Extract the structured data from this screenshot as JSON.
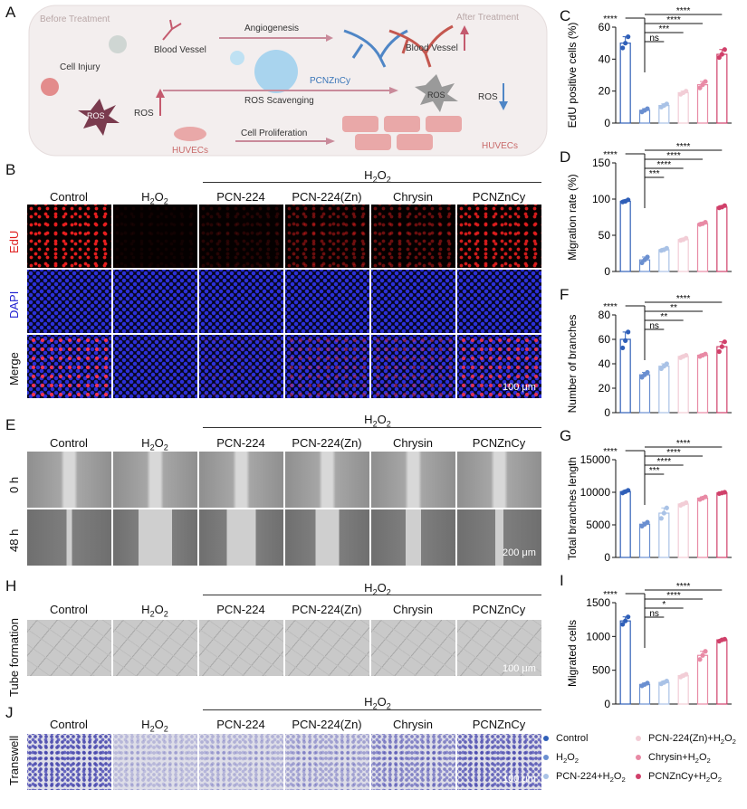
{
  "panels": {
    "A": "A",
    "B": "B",
    "C": "C",
    "D": "D",
    "E": "E",
    "F": "F",
    "G": "G",
    "H": "H",
    "I": "I",
    "J": "J"
  },
  "schematic": {
    "before": "Before Treatment",
    "after": "After Treatment",
    "blood_vessel": "Blood Vessel",
    "angiogenesis": "Angiogenesis",
    "blood_vessel_after": "Blood Vessel",
    "cell_injury": "Cell Injury",
    "pcnzncy": "PCNZnCy",
    "ros_left": "ROS",
    "ros_mid": "ROS",
    "ros_scavenging": "ROS Scavenging",
    "ros_right_inner": "ROS",
    "ros_right": "ROS",
    "huvecs_left": "HUVECs",
    "cell_prolif": "Cell Proliferation",
    "huvecs_right": "HUVECs"
  },
  "groups": {
    "h2o2": "H2O2",
    "control": "Control",
    "h2o2_col": "H2O2",
    "pcn224": "PCN-224",
    "pcn224zn": "PCN-224(Zn)",
    "chrysin": "Chrysin",
    "pcnzncy": "PCNZnCy"
  },
  "rows": {
    "edu": "EdU",
    "dapi": "DAPI",
    "merge": "Merge",
    "zero_h": "0 h",
    "fortyeight_h": "48 h",
    "tube": "Tube formation",
    "transwell": "Transwell"
  },
  "scalebars": {
    "b": "100 μm",
    "e": "200 μm",
    "h": "100 μm",
    "j": "100 μm"
  },
  "colors": {
    "edu_label": "#e02020",
    "dapi_label": "#2020d0",
    "s1": "#2f5fb8",
    "s2": "#6a8fd0",
    "s3": "#a9c2e6",
    "s4": "#f2cdd6",
    "s5": "#e88aa5",
    "s6": "#d0406a"
  },
  "legend": [
    {
      "label": "Control"
    },
    {
      "label": "H2O2"
    },
    {
      "label": "PCN-224+H2O2"
    },
    {
      "label": "PCN-224(Zn)+H2O2"
    },
    {
      "label": "Chrysin+H2O2"
    },
    {
      "label": "PCNZnCy+H2O2"
    }
  ],
  "chart_data": [
    {
      "panel": "C",
      "type": "bar",
      "ylabel": "EdU positive cells (%)",
      "ylim": [
        0,
        60
      ],
      "yticks": [
        0,
        20,
        40,
        60
      ],
      "values": [
        50,
        8,
        11,
        19,
        24,
        43
      ],
      "points": [
        [
          47,
          50,
          54
        ],
        [
          7,
          8,
          9
        ],
        [
          10,
          11,
          12
        ],
        [
          18,
          19,
          20
        ],
        [
          22,
          24,
          26
        ],
        [
          41,
          43,
          46
        ]
      ],
      "sig": [
        "****",
        "****",
        "***",
        "ns"
      ]
    },
    {
      "panel": "D",
      "type": "bar",
      "ylabel": "Migration rate (%)",
      "ylim": [
        0,
        150
      ],
      "yticks": [
        0,
        50,
        100,
        150
      ],
      "values": [
        97,
        16,
        30,
        44,
        66,
        89
      ],
      "points": [
        [
          96,
          97,
          99
        ],
        [
          12,
          16,
          20
        ],
        [
          29,
          30,
          32
        ],
        [
          43,
          44,
          46
        ],
        [
          65,
          66,
          68
        ],
        [
          88,
          89,
          91
        ]
      ],
      "sig": [
        "****",
        "****",
        "****",
        "***"
      ]
    },
    {
      "panel": "F",
      "type": "bar",
      "ylabel": "Number of branches",
      "ylim": [
        0,
        80
      ],
      "yticks": [
        0,
        20,
        40,
        60,
        80
      ],
      "values": [
        60,
        31,
        38,
        46,
        47,
        54
      ],
      "points": [
        [
          53,
          59,
          66
        ],
        [
          29,
          31,
          33
        ],
        [
          36,
          38,
          40
        ],
        [
          45,
          46,
          47
        ],
        [
          46,
          47,
          48
        ],
        [
          50,
          54,
          58
        ]
      ],
      "sig": [
        "****",
        "**",
        "**",
        "ns"
      ]
    },
    {
      "panel": "G",
      "type": "bar",
      "ylabel": "Total branches length",
      "ylim": [
        0,
        15000
      ],
      "yticks": [
        0,
        5000,
        10000,
        15000
      ],
      "values": [
        10100,
        5100,
        6800,
        8200,
        9100,
        9900
      ],
      "points": [
        [
          9900,
          10100,
          10300
        ],
        [
          4800,
          5100,
          5400
        ],
        [
          6000,
          6800,
          7600
        ],
        [
          8000,
          8200,
          8400
        ],
        [
          8900,
          9100,
          9300
        ],
        [
          9800,
          9900,
          10000
        ]
      ],
      "sig": [
        "****",
        "****",
        "****",
        "***"
      ]
    },
    {
      "panel": "I",
      "type": "bar",
      "ylabel": "Migrated cells",
      "ylim": [
        0,
        1500
      ],
      "yticks": [
        0,
        500,
        1000,
        1500
      ],
      "values": [
        1230,
        290,
        320,
        420,
        720,
        950
      ],
      "points": [
        [
          1180,
          1230,
          1290
        ],
        [
          270,
          290,
          310
        ],
        [
          300,
          320,
          340
        ],
        [
          400,
          420,
          440
        ],
        [
          660,
          720,
          780
        ],
        [
          930,
          950,
          960
        ]
      ],
      "sig": [
        "****",
        "****",
        "*",
        "ns"
      ]
    }
  ]
}
